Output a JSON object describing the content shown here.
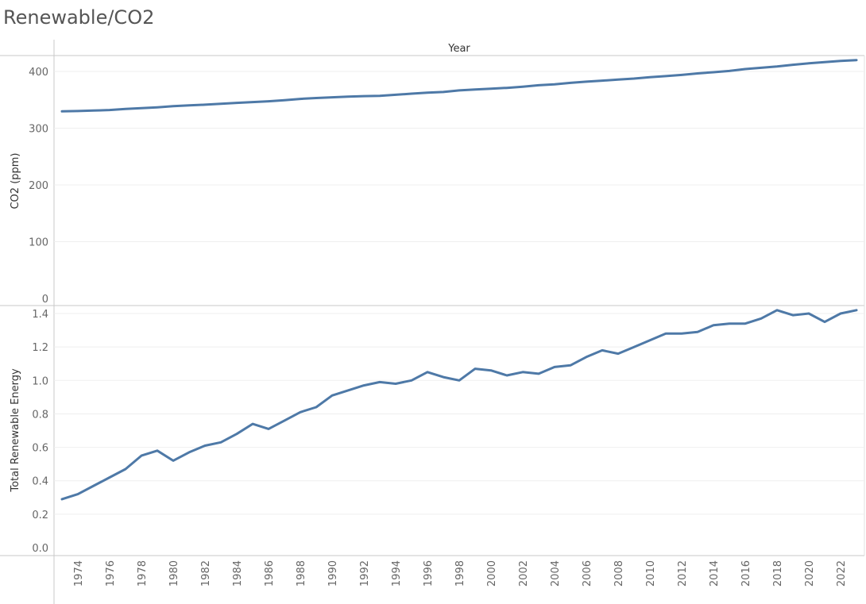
{
  "title": "Renewable/CO2",
  "chart_data": {
    "type": "line",
    "title": "Renewable/CO2",
    "x_header": "Year",
    "x": [
      1973,
      1974,
      1975,
      1976,
      1977,
      1978,
      1979,
      1980,
      1981,
      1982,
      1983,
      1984,
      1985,
      1986,
      1987,
      1988,
      1989,
      1990,
      1991,
      1992,
      1993,
      1994,
      1995,
      1996,
      1997,
      1998,
      1999,
      2000,
      2001,
      2002,
      2003,
      2004,
      2005,
      2006,
      2007,
      2008,
      2009,
      2010,
      2011,
      2012,
      2013,
      2014,
      2015,
      2016,
      2017,
      2018,
      2019,
      2020,
      2021,
      2022,
      2023
    ],
    "x_tick_labels": [
      "1974",
      "1976",
      "1978",
      "1980",
      "1982",
      "1984",
      "1986",
      "1988",
      "1990",
      "1992",
      "1994",
      "1996",
      "1998",
      "2000",
      "2002",
      "2004",
      "2006",
      "2008",
      "2010",
      "2012",
      "2014",
      "2016",
      "2018",
      "2020",
      "2022"
    ],
    "line_color": "#4e79a7",
    "panels": [
      {
        "ylabel": "CO2 (ppm)",
        "ylim": [
          0,
          440
        ],
        "yticks": [
          0,
          100,
          200,
          300,
          400
        ],
        "ytick_labels": [
          "0",
          "100",
          "200",
          "300",
          "400"
        ],
        "values": [
          329.7,
          330.2,
          331.1,
          332.0,
          333.8,
          335.4,
          336.8,
          338.7,
          340.1,
          341.4,
          343.1,
          344.6,
          346.0,
          347.4,
          349.2,
          351.6,
          353.1,
          354.4,
          355.6,
          356.5,
          357.1,
          358.9,
          360.9,
          362.6,
          363.8,
          366.6,
          368.3,
          369.5,
          371.0,
          373.1,
          375.6,
          377.4,
          379.8,
          381.9,
          383.8,
          385.6,
          387.4,
          389.9,
          391.7,
          393.9,
          396.5,
          398.6,
          400.8,
          404.2,
          406.5,
          408.7,
          411.7,
          414.2,
          416.4,
          418.5,
          420.0
        ]
      },
      {
        "ylabel": "Total Renewable Energy",
        "ylim": [
          -0.05,
          1.5
        ],
        "yticks": [
          0,
          0.2,
          0.4,
          0.6,
          0.8,
          1.0,
          1.2,
          1.4
        ],
        "ytick_labels": [
          "0.0",
          "0.2",
          "0.4",
          "0.6",
          "0.8",
          "1.0",
          "1.2",
          "1.4"
        ],
        "values": [
          0.29,
          0.32,
          0.37,
          0.42,
          0.47,
          0.55,
          0.58,
          0.52,
          0.57,
          0.61,
          0.63,
          0.68,
          0.74,
          0.71,
          0.76,
          0.81,
          0.84,
          0.91,
          0.94,
          0.97,
          0.99,
          0.98,
          1.0,
          1.05,
          1.02,
          1.0,
          1.07,
          1.06,
          1.03,
          1.05,
          1.04,
          1.08,
          1.09,
          1.14,
          1.18,
          1.16,
          1.2,
          1.24,
          1.28,
          1.28,
          1.29,
          1.33,
          1.34,
          1.34,
          1.37,
          1.42,
          1.39,
          1.4,
          1.35,
          1.4,
          1.42
        ]
      }
    ]
  }
}
